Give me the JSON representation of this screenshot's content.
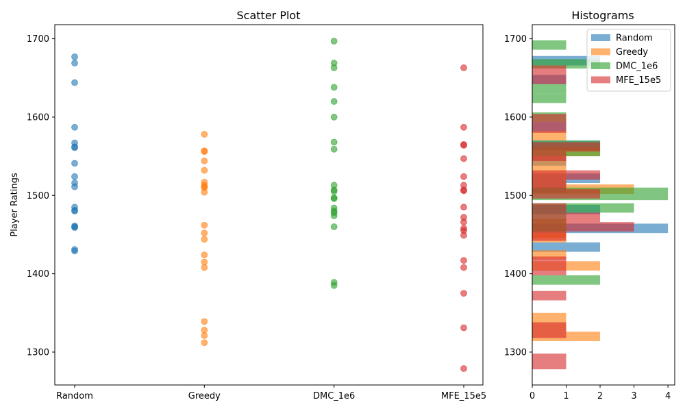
{
  "chart_data": [
    {
      "type": "scatter",
      "title": "Scatter Plot",
      "xlabel": "",
      "ylabel": "Player Ratings",
      "categories": [
        "Random",
        "Greedy",
        "DMC_1e6",
        "MFE_15e5"
      ],
      "ylim": [
        1258,
        1718
      ],
      "yticks": [
        1300,
        1400,
        1500,
        1600,
        1700
      ],
      "grid": false,
      "series": [
        {
          "color": "#1f77b4",
          "values": [
            1677,
            1669,
            1644,
            1587,
            1567,
            1562,
            1561,
            1541,
            1524,
            1516,
            1511,
            1485,
            1481,
            1480,
            1461,
            1459,
            1460,
            1431,
            1429
          ]
        },
        {
          "color": "#ff7f0e",
          "values": [
            1578,
            1557,
            1556,
            1544,
            1532,
            1517,
            1513,
            1511,
            1510,
            1504,
            1462,
            1452,
            1444,
            1424,
            1415,
            1408,
            1339,
            1328,
            1321,
            1312
          ]
        },
        {
          "color": "#2ca02c",
          "values": [
            1697,
            1669,
            1663,
            1638,
            1620,
            1600,
            1568,
            1559,
            1513,
            1507,
            1505,
            1497,
            1496,
            1484,
            1480,
            1478,
            1474,
            1460,
            1389,
            1385
          ]
        },
        {
          "color": "#d62728",
          "values": [
            1663,
            1587,
            1565,
            1564,
            1547,
            1524,
            1513,
            1507,
            1506,
            1485,
            1472,
            1466,
            1458,
            1455,
            1449,
            1417,
            1408,
            1375,
            1331,
            1279
          ]
        }
      ]
    },
    {
      "type": "bar",
      "orientation": "horizontal",
      "title": "Histograms",
      "xlim": [
        0,
        4.2
      ],
      "xticks": [
        0,
        1,
        2,
        3,
        4
      ],
      "ylim": [
        1258,
        1718
      ],
      "yticks": [
        1300,
        1400,
        1500,
        1600,
        1700
      ],
      "legend_position": "top-right",
      "series": [
        {
          "name": "Random",
          "color": "#1f77b4",
          "bins": [
            {
              "y0": 1666,
              "y1": 1678,
              "count": 2
            },
            {
              "y0": 1642,
              "y1": 1654,
              "count": 1
            },
            {
              "y0": 1582,
              "y1": 1594,
              "count": 1
            },
            {
              "y0": 1558,
              "y1": 1570,
              "count": 2
            },
            {
              "y0": 1538,
              "y1": 1550,
              "count": 1
            },
            {
              "y0": 1516,
              "y1": 1528,
              "count": 2
            },
            {
              "y0": 1504,
              "y1": 1516,
              "count": 1
            },
            {
              "y0": 1476,
              "y1": 1488,
              "count": 2
            },
            {
              "y0": 1452,
              "y1": 1464,
              "count": 4
            },
            {
              "y0": 1428,
              "y1": 1440,
              "count": 2
            }
          ]
        },
        {
          "name": "Greedy",
          "color": "#ff7f0e",
          "bins": [
            {
              "y0": 1570,
              "y1": 1582,
              "count": 1
            },
            {
              "y0": 1550,
              "y1": 1562,
              "count": 2
            },
            {
              "y0": 1538,
              "y1": 1550,
              "count": 1
            },
            {
              "y0": 1526,
              "y1": 1538,
              "count": 1
            },
            {
              "y0": 1502,
              "y1": 1514,
              "count": 3
            },
            {
              "y0": 1514,
              "y1": 1526,
              "count": 1
            },
            {
              "y0": 1458,
              "y1": 1470,
              "count": 1
            },
            {
              "y0": 1446,
              "y1": 1458,
              "count": 1
            },
            {
              "y0": 1440,
              "y1": 1452,
              "count": 1
            },
            {
              "y0": 1418,
              "y1": 1430,
              "count": 1
            },
            {
              "y0": 1404,
              "y1": 1416,
              "count": 2
            },
            {
              "y0": 1338,
              "y1": 1350,
              "count": 1
            },
            {
              "y0": 1326,
              "y1": 1338,
              "count": 1
            },
            {
              "y0": 1314,
              "y1": 1326,
              "count": 2
            }
          ]
        },
        {
          "name": "DMC_1e6",
          "color": "#2ca02c",
          "bins": [
            {
              "y0": 1686,
              "y1": 1698,
              "count": 1
            },
            {
              "y0": 1662,
              "y1": 1674,
              "count": 2
            },
            {
              "y0": 1630,
              "y1": 1642,
              "count": 1
            },
            {
              "y0": 1618,
              "y1": 1630,
              "count": 1
            },
            {
              "y0": 1594,
              "y1": 1606,
              "count": 1
            },
            {
              "y0": 1562,
              "y1": 1570,
              "count": 2
            },
            {
              "y0": 1550,
              "y1": 1562,
              "count": 2
            },
            {
              "y0": 1494,
              "y1": 1510,
              "count": 4
            },
            {
              "y0": 1478,
              "y1": 1490,
              "count": 3
            },
            {
              "y0": 1466,
              "y1": 1478,
              "count": 1
            },
            {
              "y0": 1454,
              "y1": 1466,
              "count": 1
            },
            {
              "y0": 1386,
              "y1": 1398,
              "count": 2
            }
          ]
        },
        {
          "name": "MFE_15e5",
          "color": "#d62728",
          "bins": [
            {
              "y0": 1654,
              "y1": 1666,
              "count": 1
            },
            {
              "y0": 1642,
              "y1": 1654,
              "count": 1
            },
            {
              "y0": 1592,
              "y1": 1604,
              "count": 1
            },
            {
              "y0": 1580,
              "y1": 1592,
              "count": 1
            },
            {
              "y0": 1556,
              "y1": 1568,
              "count": 2
            },
            {
              "y0": 1544,
              "y1": 1556,
              "count": 1
            },
            {
              "y0": 1520,
              "y1": 1532,
              "count": 2
            },
            {
              "y0": 1508,
              "y1": 1520,
              "count": 1
            },
            {
              "y0": 1496,
              "y1": 1508,
              "count": 2
            },
            {
              "y0": 1478,
              "y1": 1490,
              "count": 1
            },
            {
              "y0": 1466,
              "y1": 1478,
              "count": 2
            },
            {
              "y0": 1454,
              "y1": 1466,
              "count": 3
            },
            {
              "y0": 1442,
              "y1": 1454,
              "count": 1
            },
            {
              "y0": 1410,
              "y1": 1422,
              "count": 1
            },
            {
              "y0": 1398,
              "y1": 1410,
              "count": 1
            },
            {
              "y0": 1366,
              "y1": 1378,
              "count": 1
            },
            {
              "y0": 1318,
              "y1": 1338,
              "count": 1
            },
            {
              "y0": 1278,
              "y1": 1298,
              "count": 1
            }
          ]
        }
      ]
    }
  ]
}
